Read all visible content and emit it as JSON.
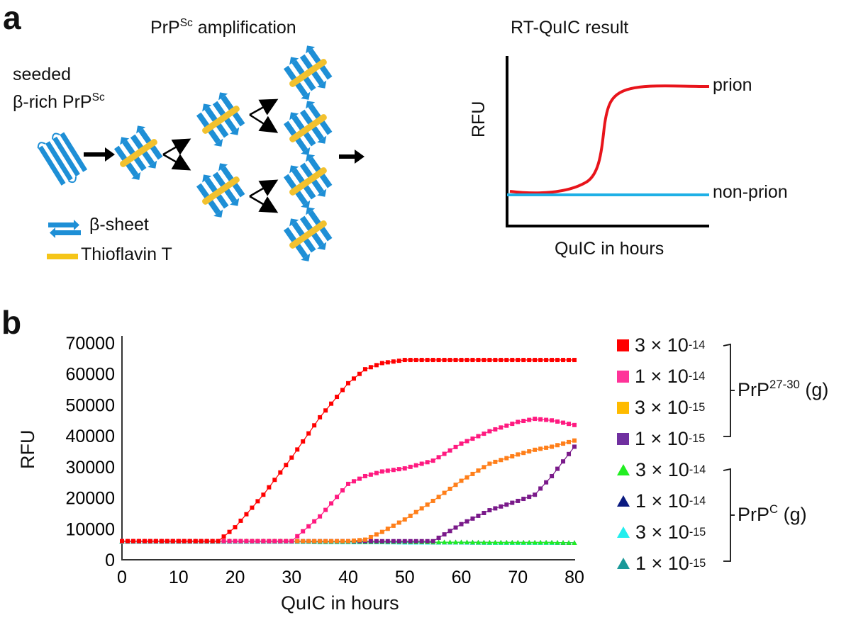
{
  "panel_a": {
    "label": "a",
    "amplification_title": "PrP",
    "amplification_title_sup": "Sc",
    "amplification_title_rest": " amplification",
    "seed_label_line1": "seeded",
    "seed_label_line2": "β-rich PrP",
    "seed_label_sup": "Sc",
    "key_beta_sheet": "β-sheet",
    "key_thioflavin": "Thioflavin T",
    "colors": {
      "beta_sheet": "#1e90d6",
      "thioflavin": "#f2c12e"
    },
    "schematic": {
      "title": "RT-QuIC result",
      "ylabel": "RFU",
      "xlabel": "QuIC in hours",
      "curves": [
        {
          "name": "prion",
          "color": "#e8141b",
          "shape": "sigmoid"
        },
        {
          "name": "non-prion",
          "color": "#1fb0e6",
          "shape": "flat"
        }
      ]
    }
  },
  "panel_b": {
    "label": "b",
    "groups": [
      {
        "name": "PrP",
        "sup": "27-30",
        "suffix": " (g)"
      },
      {
        "name": "PrP",
        "sup": "C",
        "suffix": " (g)"
      }
    ],
    "legend": [
      {
        "mantissa": "3 × 10",
        "exp": "-14",
        "color": "#ff0000",
        "marker": "square",
        "group": 0
      },
      {
        "mantissa": "1 × 10",
        "exp": "-14",
        "color": "#ff3399",
        "marker": "square",
        "group": 0
      },
      {
        "mantissa": "3 × 10",
        "exp": "-15",
        "color": "#ffbb00",
        "marker": "square",
        "group": 0
      },
      {
        "mantissa": "1 × 10",
        "exp": "-15",
        "color": "#7030a0",
        "marker": "square",
        "group": 0
      },
      {
        "mantissa": "3 × 10",
        "exp": "-14",
        "color": "#22ee22",
        "marker": "triangle",
        "group": 1
      },
      {
        "mantissa": "1 × 10",
        "exp": "-14",
        "color": "#0a1a80",
        "marker": "triangle",
        "group": 1
      },
      {
        "mantissa": "3 × 10",
        "exp": "-15",
        "color": "#22eeee",
        "marker": "triangle",
        "group": 1
      },
      {
        "mantissa": "1 × 10",
        "exp": "-15",
        "color": "#1a9999",
        "marker": "triangle",
        "group": 1
      }
    ]
  },
  "chart_data": [
    {
      "type": "line",
      "title": "RT-QuIC result",
      "xlabel": "QuIC in hours",
      "ylabel": "RFU",
      "axes_ticks": false,
      "series": [
        {
          "name": "prion",
          "description": "sigmoidal rise from low baseline to high plateau"
        },
        {
          "name": "non-prion",
          "description": "flat line at baseline"
        }
      ]
    },
    {
      "type": "line",
      "title": "",
      "xlabel": "QuIC in hours",
      "ylabel": "RFU",
      "xlim": [
        0,
        80
      ],
      "ylim": [
        0,
        70000
      ],
      "xticks": [
        0,
        10,
        20,
        30,
        40,
        50,
        60,
        70,
        80
      ],
      "yticks": [
        0,
        10000,
        20000,
        30000,
        40000,
        50000,
        60000,
        70000
      ],
      "grid": false,
      "legend_position": "right",
      "x": [
        0,
        10,
        17,
        20,
        25,
        30,
        35,
        40,
        43,
        46,
        50,
        55,
        60,
        65,
        70,
        73,
        76,
        80
      ],
      "series": [
        {
          "name": "PrP27-30 3 × 10^-14 g",
          "color": "#ff0000",
          "marker": "square",
          "values": [
            6000,
            6000,
            6000,
            10500,
            21000,
            33000,
            46000,
            57000,
            61500,
            63500,
            64500,
            64500,
            64500,
            64500,
            64500,
            64500,
            64500,
            64500
          ]
        },
        {
          "name": "PrP27-30 1 × 10^-14 g",
          "color": "#ff1a80",
          "marker": "square",
          "values": [
            6000,
            6000,
            6000,
            6000,
            6000,
            6000,
            14000,
            24500,
            27000,
            28500,
            29500,
            32000,
            37500,
            41500,
            44500,
            45500,
            45000,
            43500
          ]
        },
        {
          "name": "PrP27-30 3 × 10^-15 g",
          "color": "#ff7f1a",
          "marker": "square",
          "values": [
            6000,
            6000,
            6000,
            6000,
            6000,
            6000,
            6000,
            6000,
            6500,
            9000,
            13000,
            19000,
            25500,
            31000,
            34000,
            35500,
            36500,
            38500
          ]
        },
        {
          "name": "PrP27-30 1 × 10^-15 g",
          "color": "#7a1a8a",
          "marker": "square",
          "values": [
            6000,
            6000,
            6000,
            6000,
            6000,
            6000,
            6000,
            6000,
            6000,
            6000,
            6000,
            6000,
            11500,
            16000,
            19000,
            21000,
            27000,
            36500
          ]
        },
        {
          "name": "PrPC 3 × 10^-14 g",
          "color": "#22ee22",
          "marker": "triangle",
          "values": [
            6000,
            6000,
            6000,
            6000,
            6000,
            6000,
            5900,
            5900,
            5800,
            5800,
            5800,
            5700,
            5700,
            5600,
            5600,
            5600,
            5600,
            5500
          ]
        },
        {
          "name": "PrPC 1 × 10^-14 g",
          "color": "#0a1a80",
          "marker": "triangle",
          "values": [
            6000,
            6000,
            6000,
            6000,
            6000,
            6000,
            5900,
            5900,
            5800,
            5800,
            5800,
            5700,
            5700,
            5600,
            5600,
            5600,
            5600,
            5500
          ]
        },
        {
          "name": "PrPC 3 × 10^-15 g",
          "color": "#22eeee",
          "marker": "triangle",
          "values": [
            5800,
            5800,
            5800,
            5800,
            5800,
            5800,
            5700,
            5700,
            5700,
            5700,
            5600,
            5600,
            5600,
            5500,
            5500,
            5500,
            5500,
            5500
          ]
        },
        {
          "name": "PrPC 1 × 10^-15 g",
          "color": "#1a9999",
          "marker": "triangle",
          "values": [
            6000,
            6000,
            6000,
            6000,
            6000,
            6000,
            5900,
            5900,
            5800,
            5800,
            5800,
            5700,
            5700,
            5600,
            5600,
            5600,
            5600,
            5500
          ]
        }
      ]
    }
  ]
}
